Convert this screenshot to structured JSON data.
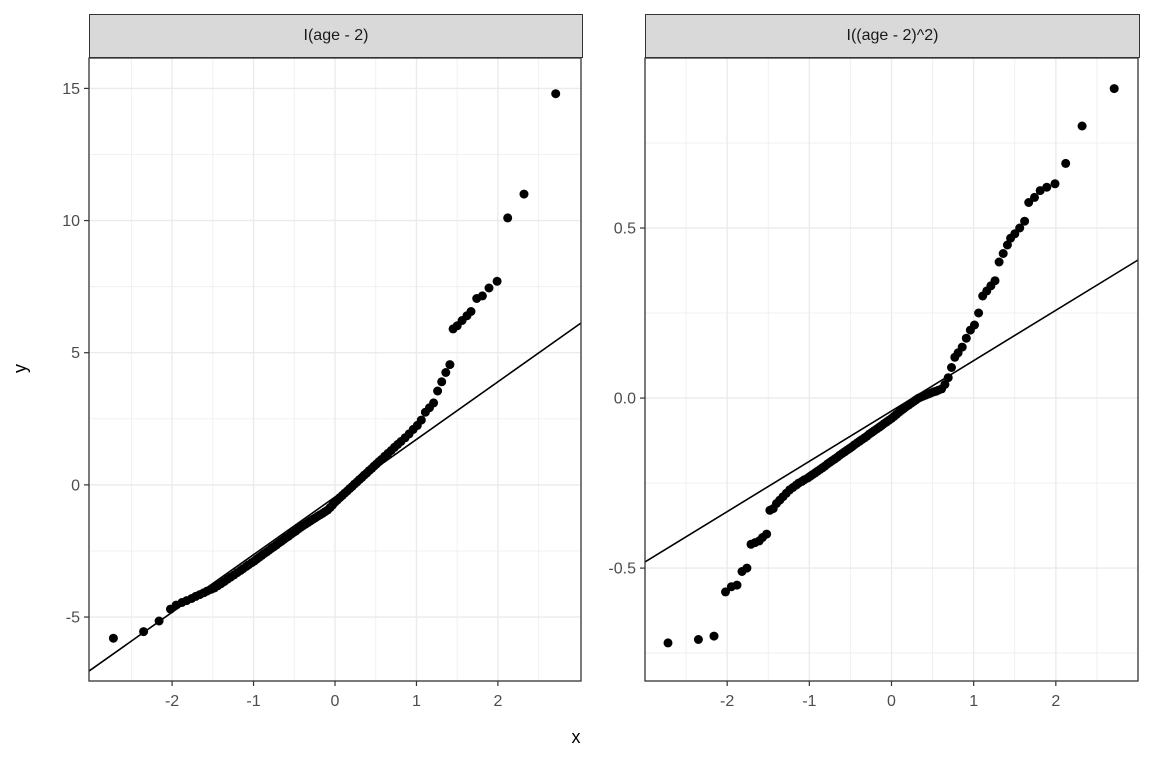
{
  "figure": {
    "x_axis_label": "x",
    "y_axis_label": "y",
    "background": "#ffffff",
    "strip_fill": "#d9d9d9",
    "strip_border": "#333333",
    "panel_bg": "#ffffff",
    "panel_border": "#333333",
    "grid_major_color": "#ebebeb",
    "grid_minor_color": "#efefef",
    "tick_label_color": "#4d4d4d",
    "tick_mark_color": "#333333",
    "point_color": "#000000",
    "ref_line_color": "#000000"
  },
  "chart_data": [
    {
      "type": "scatter",
      "title": "I(age - 2)",
      "xlabel": "x",
      "ylabel": "y",
      "xlim": [
        -3.02,
        3.02
      ],
      "ylim": [
        -7.42,
        16.15
      ],
      "x_tick_values": [
        -2,
        -1,
        0,
        1,
        2
      ],
      "x_tick_labels": [
        "-2",
        "-1",
        "0",
        "1",
        "2"
      ],
      "x_minor_values": [
        -2.5,
        -1.5,
        -0.5,
        0.5,
        1.5,
        2.5
      ],
      "y_tick_values": [
        15,
        10,
        5,
        0,
        -5
      ],
      "y_tick_labels": [
        "15",
        "10",
        "5",
        "0",
        "-5"
      ],
      "y_minor_values": [
        12.5,
        7.5,
        2.5,
        -2.5
      ],
      "grid": true,
      "legend": "none",
      "ref_line": {
        "slope": 2.18,
        "intercept": -0.46
      },
      "x": [
        -2.72,
        -2.35,
        -2.16,
        -2.02,
        -1.95,
        -1.88,
        -1.82,
        -1.76,
        -1.71,
        -1.66,
        -1.61,
        -1.57,
        -1.52,
        -1.48,
        -1.44,
        -1.4,
        -1.36,
        -1.32,
        -1.28,
        -1.24,
        -1.2,
        -1.16,
        -1.13,
        -1.09,
        -1.06,
        -1.02,
        -0.99,
        -0.96,
        -0.93,
        -0.9,
        -0.87,
        -0.84,
        -0.81,
        -0.78,
        -0.75,
        -0.72,
        -0.69,
        -0.66,
        -0.63,
        -0.6,
        -0.57,
        -0.54,
        -0.51,
        -0.48,
        -0.45,
        -0.42,
        -0.39,
        -0.36,
        -0.33,
        -0.3,
        -0.27,
        -0.24,
        -0.21,
        -0.18,
        -0.15,
        -0.12,
        -0.09,
        -0.06,
        -0.03,
        0,
        0.03,
        0.06,
        0.09,
        0.12,
        0.15,
        0.18,
        0.21,
        0.24,
        0.27,
        0.3,
        0.33,
        0.36,
        0.39,
        0.42,
        0.45,
        0.48,
        0.51,
        0.54,
        0.57,
        0.61,
        0.65,
        0.69,
        0.73,
        0.77,
        0.81,
        0.86,
        0.91,
        0.96,
        1.01,
        1.06,
        1.11,
        1.16,
        1.21,
        1.26,
        1.31,
        1.36,
        1.41,
        1.45,
        1.5,
        1.56,
        1.62,
        1.67,
        1.74,
        1.81,
        1.89,
        1.99,
        2.12,
        2.32,
        2.71
      ],
      "y": [
        -5.8,
        -5.55,
        -5.15,
        -4.7,
        -4.55,
        -4.45,
        -4.38,
        -4.3,
        -4.22,
        -4.15,
        -4.08,
        -4.02,
        -3.95,
        -3.9,
        -3.82,
        -3.74,
        -3.66,
        -3.57,
        -3.49,
        -3.41,
        -3.32,
        -3.24,
        -3.17,
        -3.09,
        -3.02,
        -2.94,
        -2.88,
        -2.81,
        -2.74,
        -2.67,
        -2.6,
        -2.54,
        -2.47,
        -2.4,
        -2.34,
        -2.27,
        -2.2,
        -2.14,
        -2.07,
        -2,
        -1.94,
        -1.87,
        -1.8,
        -1.74,
        -1.67,
        -1.6,
        -1.54,
        -1.48,
        -1.42,
        -1.36,
        -1.3,
        -1.24,
        -1.18,
        -1.13,
        -1.07,
        -1.01,
        -0.95,
        -0.86,
        -0.76,
        -0.65,
        -0.57,
        -0.48,
        -0.4,
        -0.31,
        -0.23,
        -0.14,
        -0.06,
        0.03,
        0.11,
        0.2,
        0.28,
        0.37,
        0.45,
        0.54,
        0.62,
        0.71,
        0.79,
        0.88,
        0.96,
        1.08,
        1.19,
        1.3,
        1.42,
        1.53,
        1.64,
        1.78,
        1.93,
        2.1,
        2.25,
        2.45,
        2.75,
        2.92,
        3.1,
        3.55,
        3.9,
        4.25,
        4.55,
        5.9,
        6.02,
        6.22,
        6.4,
        6.56,
        7.05,
        7.15,
        7.45,
        7.7,
        10.1,
        11,
        14.8
      ]
    },
    {
      "type": "scatter",
      "title": "I((age - 2)^2)",
      "xlabel": "x",
      "ylabel": "y",
      "xlim": [
        -3.0,
        3.0
      ],
      "ylim": [
        -0.832,
        1.0
      ],
      "x_tick_values": [
        -2,
        -1,
        0,
        1,
        2
      ],
      "x_tick_labels": [
        "-2",
        "-1",
        "0",
        "1",
        "2"
      ],
      "x_minor_values": [
        -2.5,
        -1.5,
        -0.5,
        0.5,
        1.5,
        2.5
      ],
      "y_tick_values": [
        0.5,
        0.0,
        -0.5
      ],
      "y_tick_labels": [
        "0.5",
        "0.0",
        "-0.5"
      ],
      "y_minor_values": [
        0.75,
        0.25,
        -0.25,
        -0.75
      ],
      "grid": true,
      "legend": "none",
      "ref_line": {
        "slope": 0.148,
        "intercept": -0.038
      },
      "x": [
        -2.72,
        -2.35,
        -2.16,
        -2.02,
        -1.95,
        -1.88,
        -1.82,
        -1.76,
        -1.71,
        -1.66,
        -1.61,
        -1.57,
        -1.52,
        -1.48,
        -1.44,
        -1.4,
        -1.36,
        -1.32,
        -1.28,
        -1.24,
        -1.2,
        -1.16,
        -1.13,
        -1.09,
        -1.06,
        -1.02,
        -0.99,
        -0.96,
        -0.93,
        -0.9,
        -0.87,
        -0.84,
        -0.81,
        -0.78,
        -0.75,
        -0.72,
        -0.69,
        -0.66,
        -0.63,
        -0.6,
        -0.57,
        -0.54,
        -0.51,
        -0.48,
        -0.45,
        -0.42,
        -0.39,
        -0.36,
        -0.33,
        -0.3,
        -0.27,
        -0.24,
        -0.21,
        -0.18,
        -0.15,
        -0.12,
        -0.09,
        -0.06,
        -0.03,
        0,
        0.03,
        0.06,
        0.09,
        0.12,
        0.15,
        0.18,
        0.21,
        0.24,
        0.27,
        0.3,
        0.33,
        0.36,
        0.39,
        0.42,
        0.45,
        0.48,
        0.51,
        0.54,
        0.57,
        0.61,
        0.65,
        0.69,
        0.73,
        0.77,
        0.81,
        0.86,
        0.91,
        0.96,
        1.01,
        1.06,
        1.11,
        1.16,
        1.21,
        1.26,
        1.31,
        1.36,
        1.41,
        1.45,
        1.5,
        1.56,
        1.62,
        1.67,
        1.74,
        1.81,
        1.89,
        1.99,
        2.12,
        2.32,
        2.71
      ],
      "y": [
        -0.72,
        -0.71,
        -0.7,
        -0.57,
        -0.555,
        -0.55,
        -0.51,
        -0.5,
        -0.43,
        -0.425,
        -0.42,
        -0.41,
        -0.4,
        -0.33,
        -0.325,
        -0.31,
        -0.3,
        -0.29,
        -0.28,
        -0.27,
        -0.263,
        -0.256,
        -0.25,
        -0.245,
        -0.24,
        -0.235,
        -0.23,
        -0.225,
        -0.22,
        -0.215,
        -0.21,
        -0.205,
        -0.2,
        -0.194,
        -0.189,
        -0.184,
        -0.179,
        -0.174,
        -0.168,
        -0.163,
        -0.158,
        -0.153,
        -0.148,
        -0.143,
        -0.137,
        -0.132,
        -0.127,
        -0.122,
        -0.117,
        -0.112,
        -0.106,
        -0.101,
        -0.096,
        -0.091,
        -0.086,
        -0.081,
        -0.075,
        -0.07,
        -0.065,
        -0.06,
        -0.054,
        -0.048,
        -0.042,
        -0.036,
        -0.031,
        -0.025,
        -0.02,
        -0.015,
        -0.01,
        -0.005,
        0,
        0.003,
        0.006,
        0.009,
        0.012,
        0.015,
        0.018,
        0.02,
        0.023,
        0.027,
        0.04,
        0.06,
        0.09,
        0.12,
        0.133,
        0.15,
        0.176,
        0.2,
        0.215,
        0.25,
        0.3,
        0.315,
        0.33,
        0.345,
        0.4,
        0.425,
        0.45,
        0.47,
        0.483,
        0.5,
        0.52,
        0.575,
        0.59,
        0.61,
        0.62,
        0.63,
        0.69,
        0.8,
        0.91
      ]
    }
  ]
}
